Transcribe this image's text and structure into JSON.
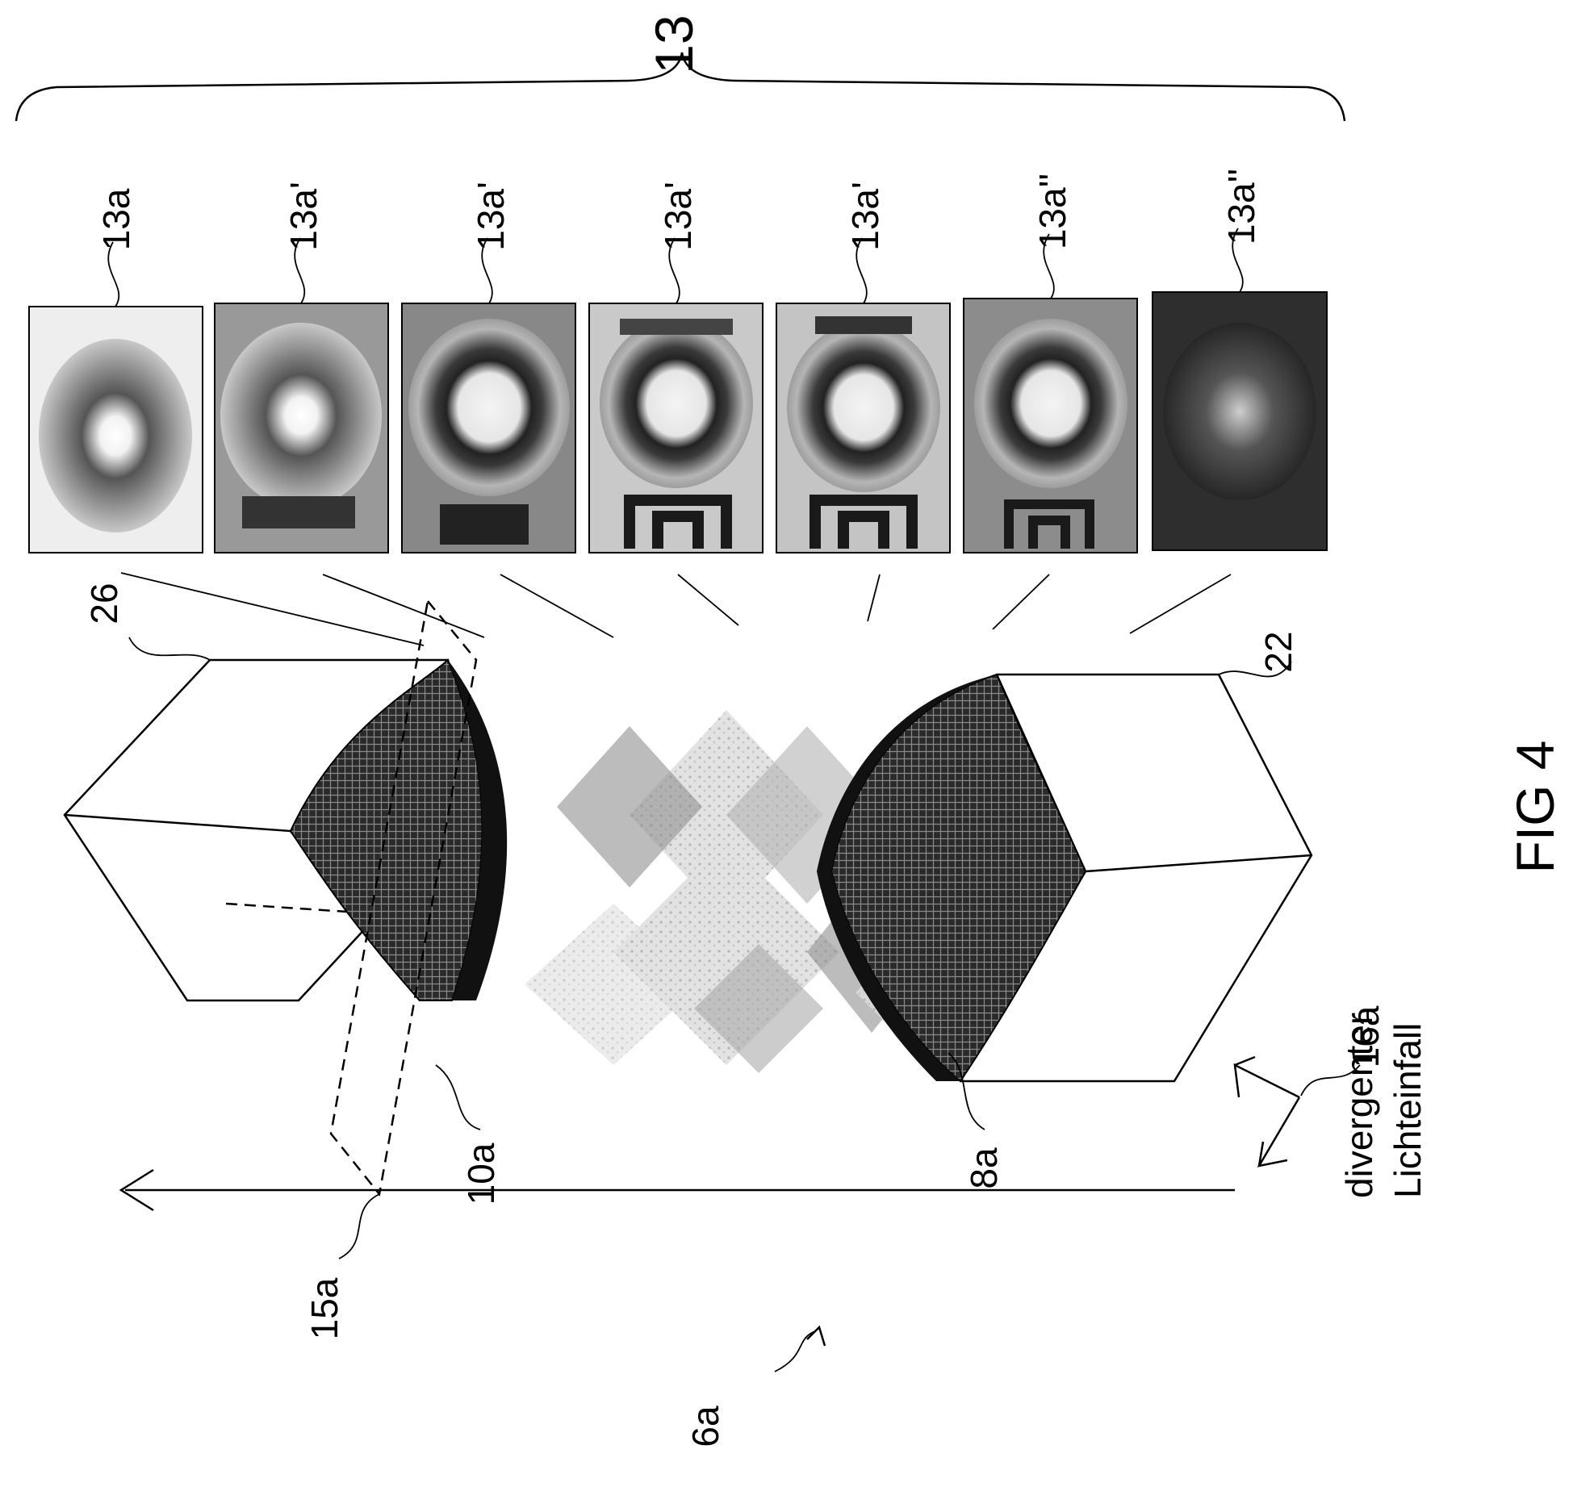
{
  "figure": {
    "title": "FIG 4",
    "bracket_label": "13",
    "images": [
      {
        "label": "13a"
      },
      {
        "label": "13a'"
      },
      {
        "label": "13a'"
      },
      {
        "label": "13a'"
      },
      {
        "label": "13a'"
      },
      {
        "label": "13a''"
      },
      {
        "label": "13a''"
      }
    ],
    "labels": {
      "upper_block": "26",
      "lower_block": "22",
      "dashed_plane": "15a",
      "upper_surface": "10a",
      "lower_surface": "8a",
      "system": "6a",
      "incidence": "16a",
      "incidence_text_line1": "divergenter",
      "incidence_text_line2": "Lichteinfall"
    }
  }
}
